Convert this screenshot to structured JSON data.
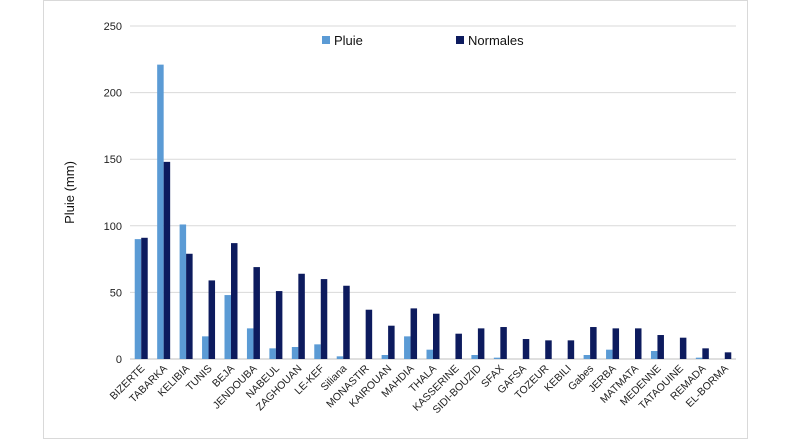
{
  "chart_data": {
    "type": "bar",
    "title": "",
    "xlabel": "",
    "ylabel": "Pluie (mm)",
    "ylim": [
      0,
      250
    ],
    "yticks": [
      0,
      50,
      100,
      150,
      200,
      250
    ],
    "grid": true,
    "legend_position": "top",
    "categories": [
      "BIZERTE",
      "TABARKA",
      "KELIBIA",
      "TUNIS",
      "BEJA",
      "JENDOUBA",
      "NABEUL",
      "ZAGHOUAN",
      "LE-KEF",
      "Siliana",
      "MONASTIR",
      "KAIROUAN",
      "MAHDIA",
      "THALA",
      "KASSERINE",
      "SIDI-BOUZID",
      "SFAX",
      "GAFSA",
      "TOZEUR",
      "KEBILI",
      "Gabes",
      "JERBA",
      "MATMATA",
      "MEDENNE",
      "TATAOUINE",
      "REMADA",
      "EL-BORMA"
    ],
    "series": [
      {
        "name": "Pluie",
        "color": "#5b9bd5",
        "values": [
          90,
          221,
          101,
          17,
          48,
          23,
          8,
          9,
          11,
          2,
          0,
          3,
          17,
          7,
          0,
          3,
          1,
          0,
          0,
          0,
          3,
          7,
          0,
          6,
          0,
          1,
          0
        ]
      },
      {
        "name": "Normales",
        "color": "#0d1b5e",
        "values": [
          91,
          148,
          79,
          59,
          87,
          69,
          51,
          64,
          60,
          55,
          37,
          25,
          38,
          34,
          19,
          23,
          24,
          15,
          14,
          14,
          24,
          23,
          23,
          18,
          16,
          8,
          5
        ]
      }
    ]
  }
}
